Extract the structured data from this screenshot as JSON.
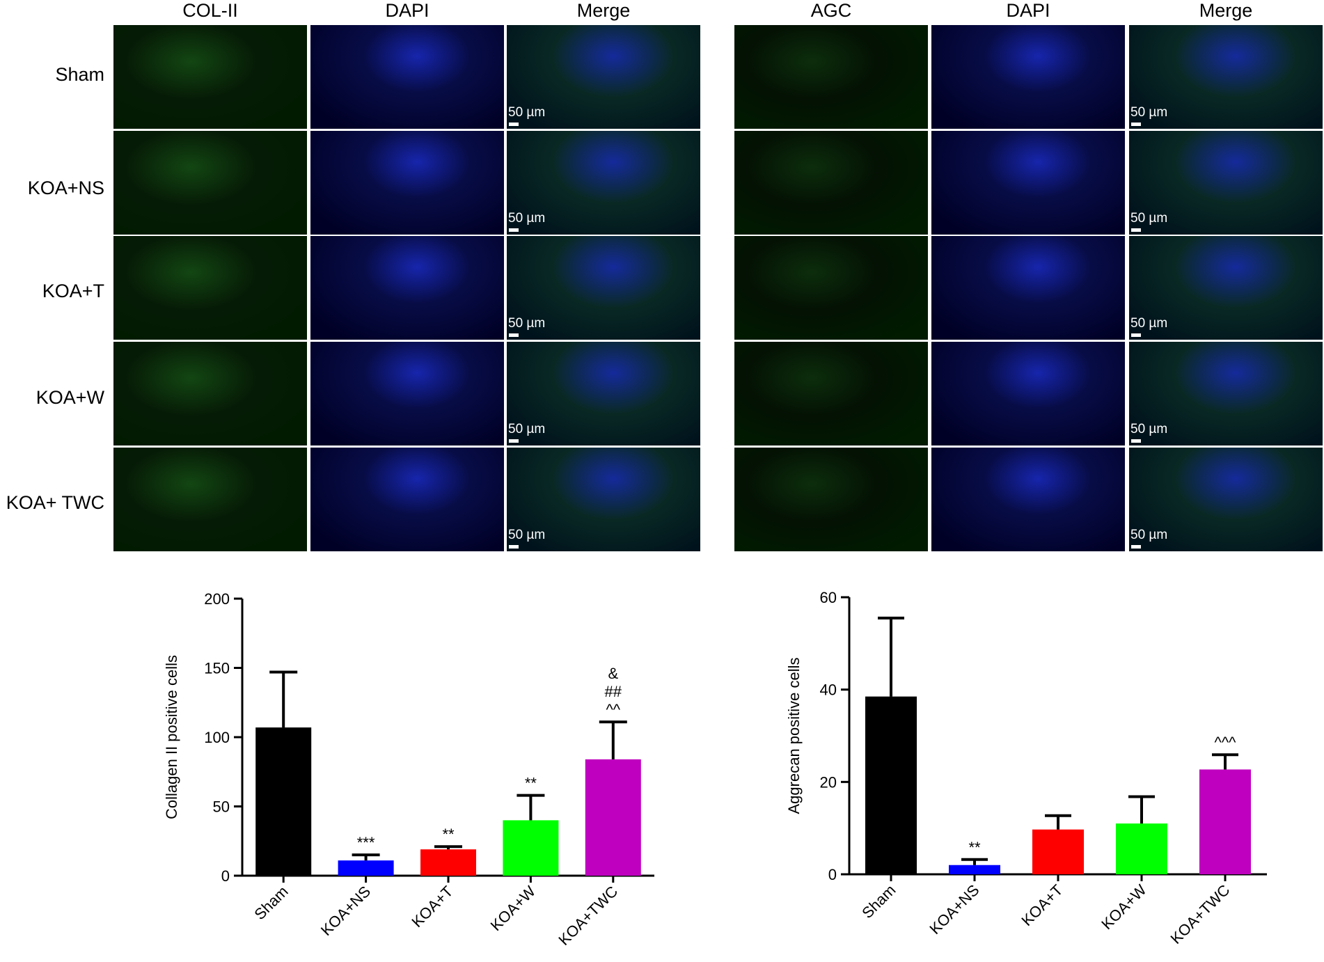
{
  "figure": {
    "left_panel": {
      "columns": [
        "COL-II",
        "DAPI",
        "Merge"
      ]
    },
    "right_panel": {
      "columns": [
        "AGC",
        "DAPI",
        "Merge"
      ]
    },
    "rows": [
      "Sham",
      "KOA+NS",
      "KOA+T",
      "KOA+W",
      "KOA+ TWC"
    ],
    "scale_label": "50 µm"
  },
  "colors": {
    "green_stain": "#1f8a1f",
    "blue_stain": "#1a2bd8",
    "panel_bg": "#000000"
  },
  "chart_data": [
    {
      "type": "bar",
      "categories": [
        "Sham",
        "KOA+NS",
        "KOA+T",
        "KOA+W",
        "KOA+TWC"
      ],
      "values": [
        107,
        11,
        19,
        40,
        84
      ],
      "errors": [
        40,
        4,
        2,
        18,
        27
      ],
      "annotations": [
        "",
        "***",
        "**",
        "**",
        "&\n##\n^^"
      ],
      "colors": [
        "#000000",
        "#0000ff",
        "#ff0000",
        "#00ff00",
        "#bf00bf"
      ],
      "ylabel": "Collagen II positive cells",
      "xlabel": "",
      "title": "",
      "ylim": [
        0,
        200
      ],
      "yticks": [
        0,
        50,
        100,
        150,
        200
      ]
    },
    {
      "type": "bar",
      "categories": [
        "Sham",
        "KOA+NS",
        "KOA+T",
        "KOA+W",
        "KOA+TWC"
      ],
      "values": [
        38.5,
        2,
        9.7,
        11,
        22.7
      ],
      "errors": [
        17,
        1.2,
        3,
        5.8,
        3.2
      ],
      "annotations": [
        "",
        "**",
        "",
        "",
        "^^^"
      ],
      "colors": [
        "#000000",
        "#0000ff",
        "#ff0000",
        "#00ff00",
        "#bf00bf"
      ],
      "ylabel": "Aggrecan positive cells",
      "xlabel": "",
      "title": "",
      "ylim": [
        0,
        60
      ],
      "yticks": [
        0,
        20,
        40,
        60
      ]
    }
  ]
}
